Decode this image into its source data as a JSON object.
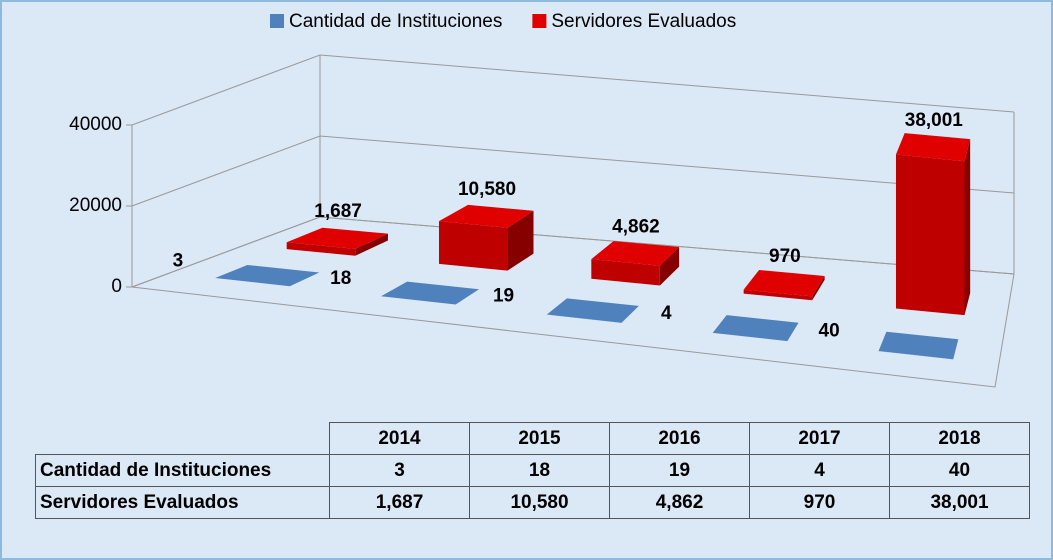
{
  "chart_data": {
    "type": "bar3d",
    "categories": [
      "2014",
      "2015",
      "2016",
      "2017",
      "2018"
    ],
    "series": [
      {
        "name": "Cantidad de Instituciones",
        "color": "#4f81bd",
        "values": [
          3,
          18,
          19,
          4,
          40
        ]
      },
      {
        "name": "Servidores Evaluados",
        "color": "#e00000",
        "values": [
          1687,
          10580,
          4862,
          970,
          38001
        ],
        "value_labels": [
          "1,687",
          "10,580",
          "4,862",
          "970",
          "38,001"
        ]
      }
    ],
    "ylim": [
      0,
      40000
    ],
    "yticks": [
      0,
      20000,
      40000
    ],
    "grid": true,
    "legend": "top"
  }
}
